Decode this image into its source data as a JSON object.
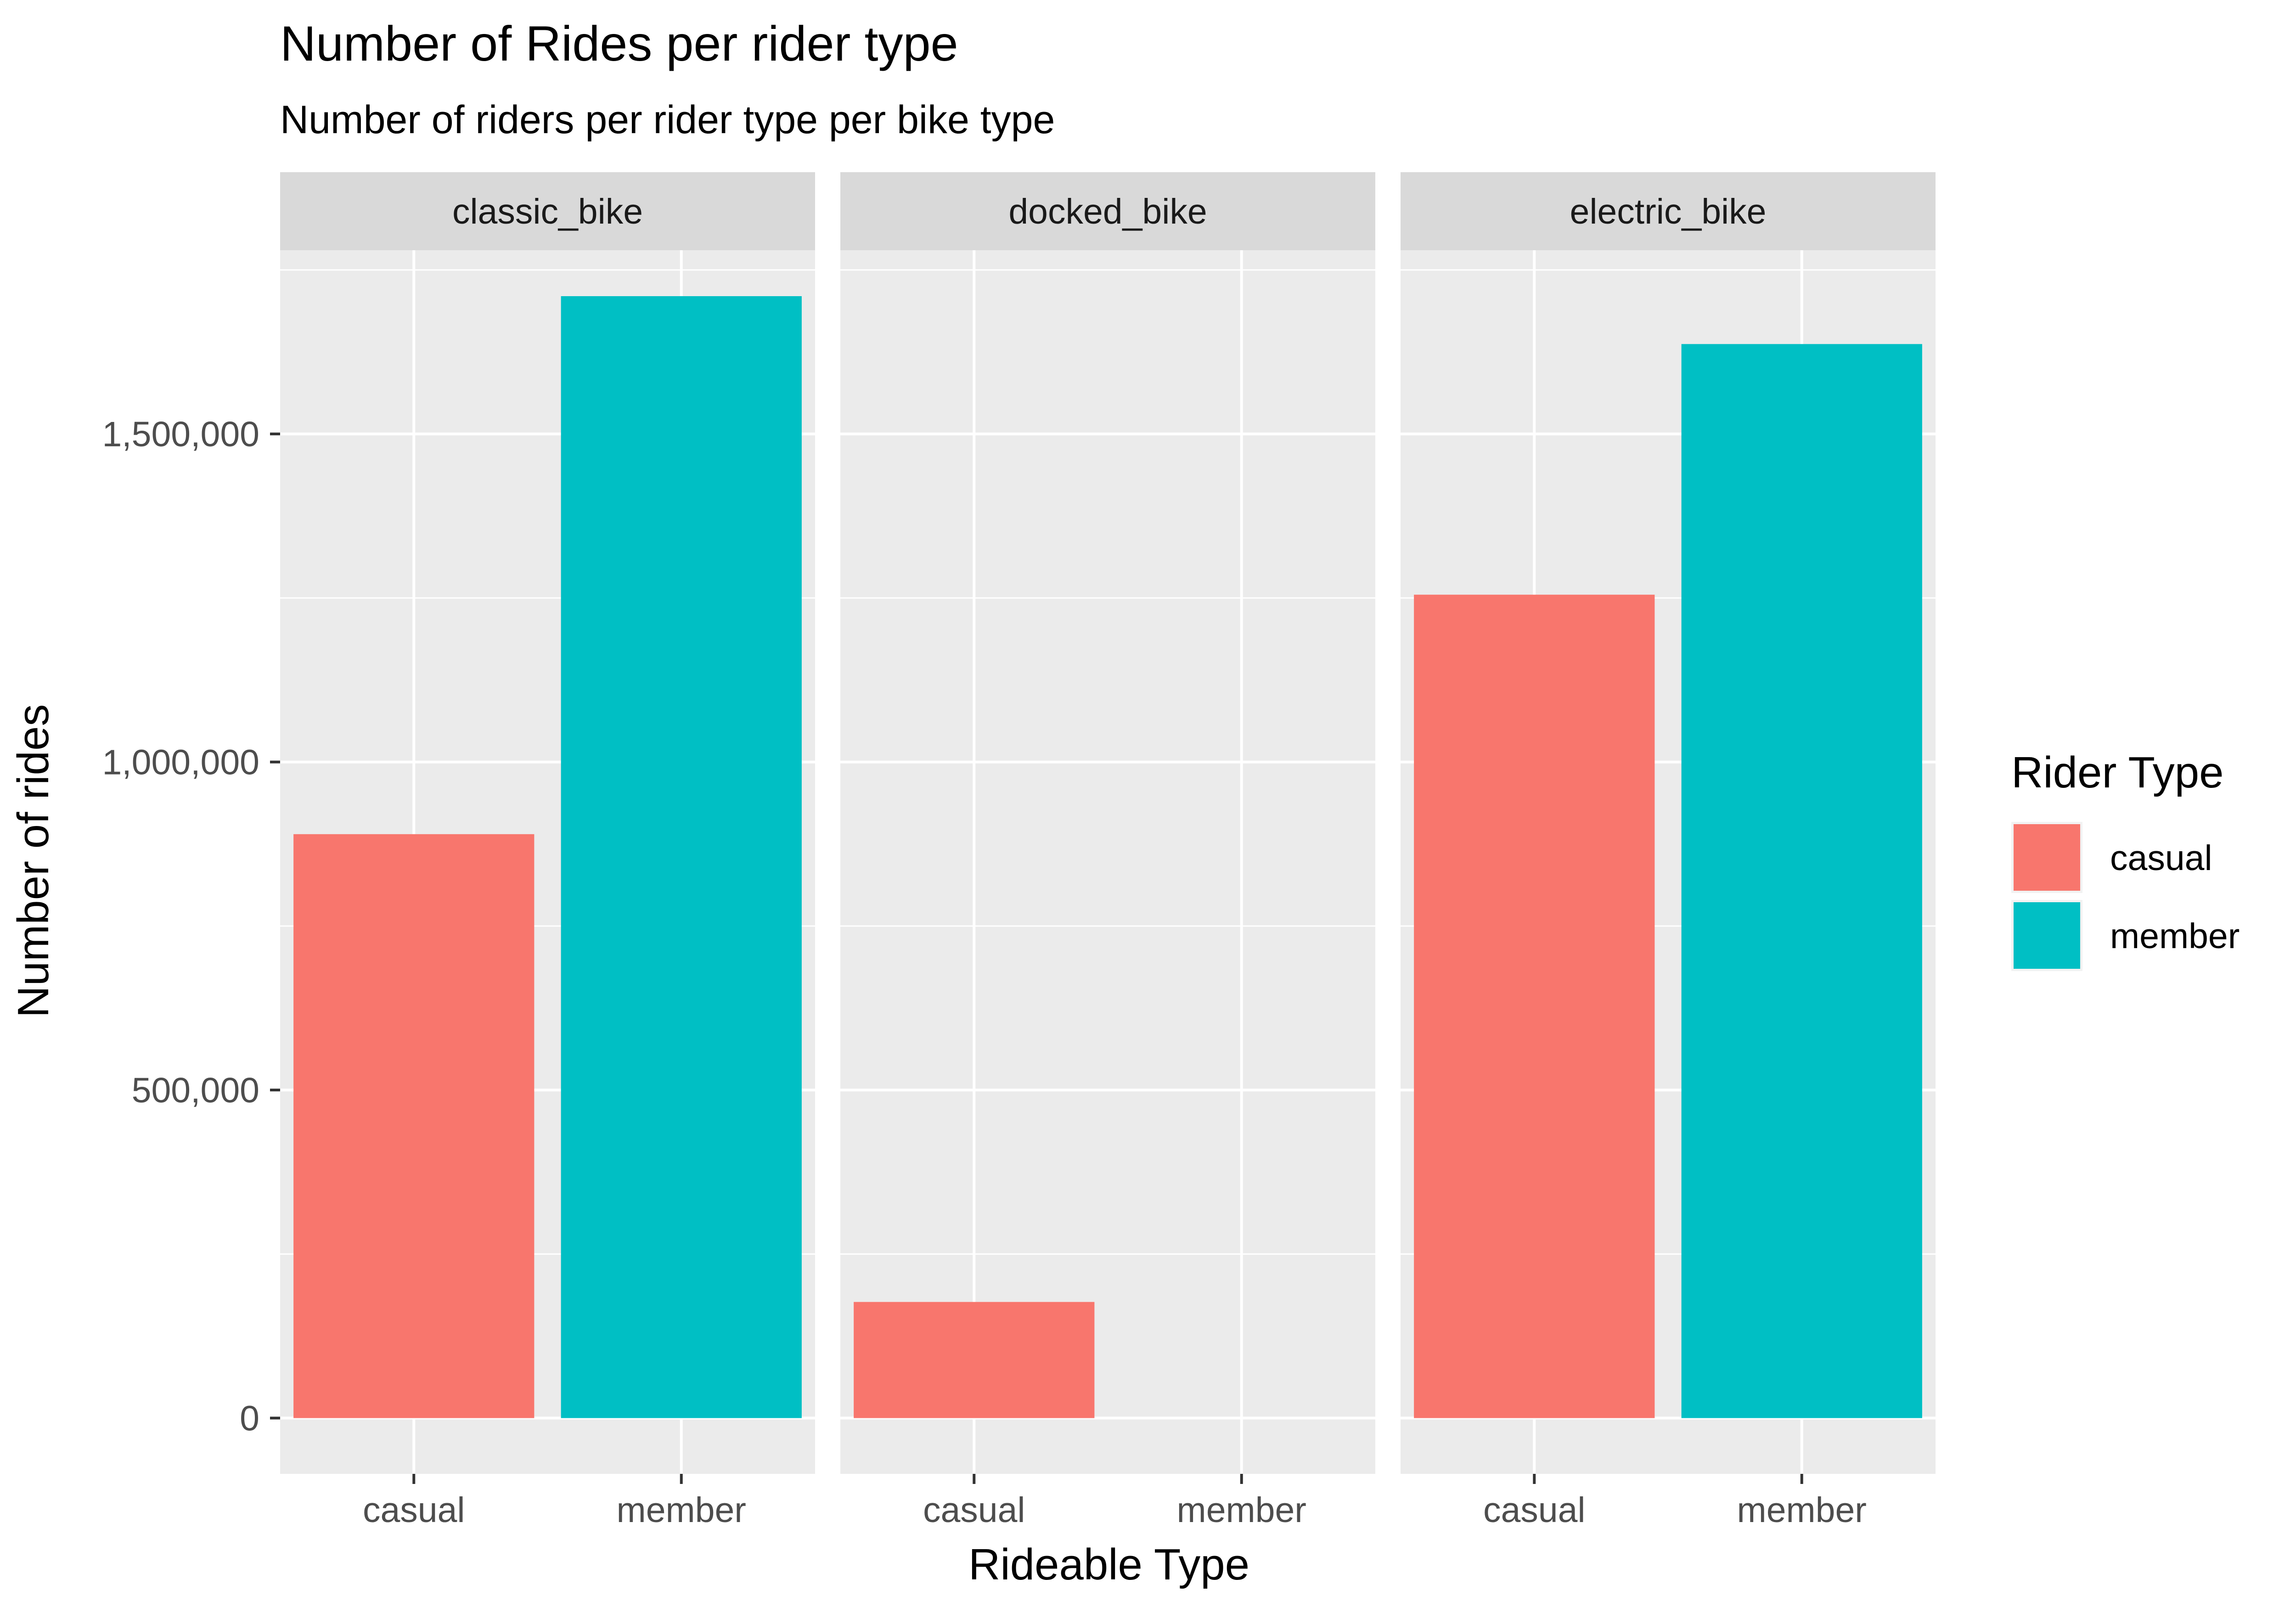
{
  "chart_data": {
    "type": "bar",
    "title": "Number of Rides per rider type",
    "subtitle": "Number of riders per rider type per bike type",
    "xlabel": "Rideable Type",
    "ylabel": "Number of rides",
    "ylim": [
      -85000,
      1780000
    ],
    "yticks": [
      0,
      500000,
      1000000,
      1500000
    ],
    "ytick_labels": [
      "0",
      "500,000",
      "1,000,000",
      "1,500,000"
    ],
    "categories": [
      "casual",
      "member"
    ],
    "facets": [
      {
        "label": "classic_bike",
        "values": [
          890000,
          1710000
        ]
      },
      {
        "label": "docked_bike",
        "values": [
          177000,
          0
        ]
      },
      {
        "label": "electric_bike",
        "values": [
          1255000,
          1637000
        ]
      }
    ],
    "legend": {
      "title": "Rider Type",
      "placement": "right",
      "items": [
        {
          "label": "casual",
          "color": "#F8766D"
        },
        {
          "label": "member",
          "color": "#00BFC4"
        }
      ]
    },
    "grid": true,
    "panel_background": "#EBEBEB",
    "strip_background": "#D9D9D9"
  }
}
